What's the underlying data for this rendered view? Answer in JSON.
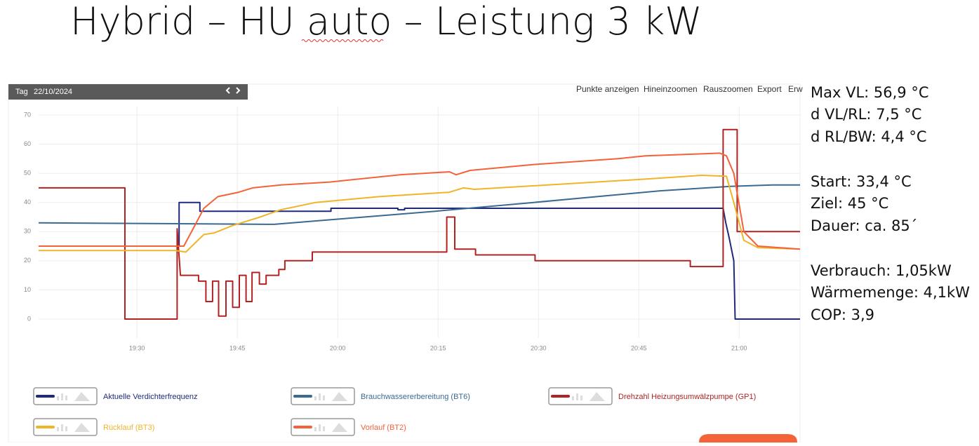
{
  "chart_data": {
    "type": "line",
    "title": "Hybrid – HU auto – Leistung 3 kW",
    "toolbar": {
      "mode": "Tag",
      "date": "22/10/2024",
      "buttons": [
        "Punkte anzeigen",
        "Hineinzoomen",
        "Rauszoomen",
        "Export",
        "Erw"
      ]
    },
    "xlim": [
      1155.3,
      1269.1
    ],
    "xticks": [
      {
        "value": 1170,
        "label": "19:30"
      },
      {
        "value": 1185,
        "label": "19:45"
      },
      {
        "value": 1200,
        "label": "20:00"
      },
      {
        "value": 1215,
        "label": "20:15"
      },
      {
        "value": 1230,
        "label": "20:30"
      },
      {
        "value": 1245,
        "label": "20:45"
      },
      {
        "value": 1260,
        "label": "21:00"
      }
    ],
    "ylim": [
      -6.5,
      73
    ],
    "yticks": [
      0,
      10,
      20,
      30,
      40,
      50,
      60,
      70
    ],
    "grid": true,
    "series": [
      {
        "name": "Aktuelle Verdichterfrequenz",
        "color": "#1f2a7a",
        "x": [
          1155.3,
          1176.3,
          1176.3,
          1179.4,
          1179.4,
          1199,
          1199,
          1209,
          1209,
          1210,
          1210,
          1257.6,
          1258,
          1258.5,
          1259.2,
          1259.4,
          1269.1
        ],
        "values": [
          25,
          25,
          40,
          40,
          37,
          37,
          38,
          38,
          37.5,
          37.5,
          38,
          38,
          33,
          28,
          20,
          0,
          0
        ]
      },
      {
        "name": "Brauchwassererbereitung (BT6)",
        "color": "#3a6a92",
        "x": [
          1155.3,
          1190.5,
          1214.6,
          1229.3,
          1248.2,
          1258.7,
          1265,
          1269.1
        ],
        "values": [
          33,
          32.5,
          37,
          40,
          44,
          45.5,
          46,
          46
        ]
      },
      {
        "name": "Drehzahl Heizungsumwälzpumpe (GP1)",
        "color": "#b22222",
        "x": [
          1155.3,
          1168.2,
          1168.2,
          1176,
          1176,
          1176.5,
          1176.5,
          1179.2,
          1179.2,
          1180.3,
          1180.3,
          1181.3,
          1181.3,
          1182.2,
          1182.2,
          1183.3,
          1183.3,
          1184.3,
          1184.3,
          1185.3,
          1185.3,
          1186.3,
          1186.3,
          1187.2,
          1187.2,
          1188.3,
          1188.3,
          1189.3,
          1189.3,
          1191.2,
          1191.2,
          1192.1,
          1192.1,
          1196.2,
          1196.2,
          1216.3,
          1216.3,
          1217.5,
          1217.5,
          1220.6,
          1220.6,
          1229.5,
          1229.5,
          1252.7,
          1252.7,
          1257.6,
          1257.6,
          1259.7,
          1259.7,
          1269.1
        ],
        "values": [
          45,
          45,
          0,
          0,
          31,
          15,
          15,
          15,
          13,
          13,
          6,
          6,
          13,
          13,
          1,
          1,
          13,
          13,
          4,
          4,
          15,
          15,
          6,
          6,
          16,
          16,
          12,
          12,
          15,
          15,
          17,
          17,
          20,
          20,
          23,
          23,
          35,
          35,
          24,
          24,
          22,
          22,
          20,
          20,
          18,
          18,
          65,
          65,
          30,
          30
        ]
      },
      {
        "name": "Rücklauf (BT3)",
        "color": "#f0b429",
        "x": [
          1155.3,
          1175.8,
          1177.3,
          1180,
          1181.5,
          1184.2,
          1188.4,
          1191.5,
          1196.7,
          1206.2,
          1216.7,
          1218.8,
          1220.4,
          1231.4,
          1246,
          1254.4,
          1258.1,
          1259.2,
          1260.7,
          1262.8,
          1269.1
        ],
        "values": [
          23.5,
          23.5,
          23,
          29,
          29.5,
          32,
          35,
          37.5,
          40,
          42,
          43.5,
          45,
          44.5,
          46,
          48,
          49.3,
          49,
          40,
          27,
          24.5,
          24
        ]
      },
      {
        "name": "Vorlauf (BT2)",
        "color": "#f4623a",
        "x": [
          1155.3,
          1175.8,
          1177,
          1178.4,
          1180,
          1182.1,
          1185.2,
          1187.3,
          1191.5,
          1198.8,
          1209.3,
          1216.7,
          1217.7,
          1219.8,
          1229.3,
          1241.9,
          1246,
          1257.1,
          1258.1,
          1259.2,
          1260.7,
          1262.8,
          1269.1
        ],
        "values": [
          25,
          25,
          25,
          31,
          38,
          42,
          43.5,
          45,
          46,
          47,
          49.5,
          50.5,
          49.5,
          51,
          53,
          55,
          56,
          56.9,
          56,
          50,
          30,
          25,
          24
        ]
      }
    ],
    "notes": [
      "Max VL: 56,9 °C",
      "d VL/RL: 7,5 °C",
      "d RL/BW: 4,4 °C",
      "Start: 33,4 °C",
      "Ziel: 45 °C",
      "Dauer: ca. 85´",
      "Verbrauch: 1,05kW",
      "Wärmemenge: 4,1kW",
      "COP: 3,9"
    ]
  }
}
